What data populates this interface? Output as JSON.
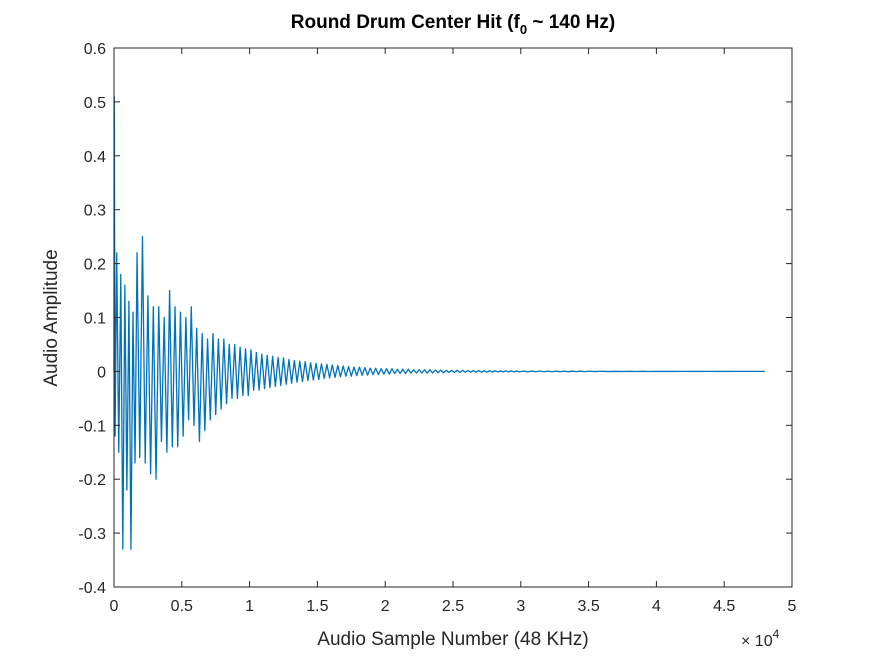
{
  "chart_data": {
    "type": "line",
    "title": {
      "prefix": "Round Drum Center Hit (f",
      "subscript": "0",
      "suffix": " ~ 140 Hz)"
    },
    "xlabel": "Audio Sample Number (48 KHz)",
    "ylabel": "Audio Amplitude",
    "x_exponent": {
      "base": "× 10",
      "power": "4"
    },
    "xlim": [
      0,
      5
    ],
    "ylim": [
      -0.4,
      0.6
    ],
    "x_ticks": [
      0,
      0.5,
      1,
      1.5,
      2,
      2.5,
      3,
      3.5,
      4,
      4.5,
      5
    ],
    "x_tick_labels": [
      "0",
      "0.5",
      "1",
      "1.5",
      "2",
      "2.5",
      "3",
      "3.5",
      "4",
      "4.5",
      "5"
    ],
    "y_ticks": [
      -0.4,
      -0.3,
      -0.2,
      -0.1,
      0,
      0.1,
      0.2,
      0.3,
      0.4,
      0.5,
      0.6
    ],
    "y_tick_labels": [
      "-0.4",
      "-0.3",
      "-0.2",
      "-0.1",
      "0",
      "0.1",
      "0.2",
      "0.3",
      "0.4",
      "0.5",
      "0.6"
    ],
    "grid": false,
    "box": true,
    "series": [
      {
        "color": "#0072BD",
        "x_unit_scale": 10000,
        "points": [
          [
            0,
            0
          ],
          [
            0.002,
            0.51
          ],
          [
            0.008,
            -0.12
          ],
          [
            0.02,
            0.22
          ],
          [
            0.035,
            -0.15
          ],
          [
            0.05,
            0.18
          ],
          [
            0.065,
            -0.33
          ],
          [
            0.08,
            0.16
          ],
          [
            0.095,
            -0.22
          ],
          [
            0.11,
            0.13
          ],
          [
            0.125,
            -0.33
          ],
          [
            0.14,
            0.11
          ],
          [
            0.155,
            -0.17
          ],
          [
            0.17,
            0.22
          ],
          [
            0.19,
            -0.16
          ],
          [
            0.21,
            0.25
          ],
          [
            0.23,
            -0.17
          ],
          [
            0.25,
            0.14
          ],
          [
            0.27,
            -0.19
          ],
          [
            0.29,
            0.12
          ],
          [
            0.31,
            -0.2
          ],
          [
            0.33,
            0.12
          ],
          [
            0.35,
            -0.13
          ],
          [
            0.37,
            0.1
          ],
          [
            0.39,
            -0.15
          ],
          [
            0.41,
            0.15
          ],
          [
            0.43,
            -0.14
          ],
          [
            0.45,
            0.12
          ],
          [
            0.47,
            -0.14
          ],
          [
            0.49,
            0.11
          ],
          [
            0.51,
            -0.12
          ],
          [
            0.53,
            0.1
          ],
          [
            0.55,
            -0.09
          ],
          [
            0.57,
            0.12
          ],
          [
            0.59,
            -0.1
          ],
          [
            0.61,
            0.08
          ],
          [
            0.63,
            -0.13
          ],
          [
            0.65,
            0.07
          ],
          [
            0.67,
            -0.11
          ],
          [
            0.69,
            0.06
          ],
          [
            0.71,
            -0.09
          ],
          [
            0.73,
            0.07
          ],
          [
            0.75,
            -0.08
          ],
          [
            0.77,
            0.06
          ],
          [
            0.79,
            -0.07
          ],
          [
            0.81,
            0.06
          ],
          [
            0.83,
            -0.06
          ],
          [
            0.85,
            0.05
          ],
          [
            0.87,
            -0.05
          ],
          [
            0.89,
            0.05
          ],
          [
            0.91,
            -0.05
          ],
          [
            0.93,
            0.045
          ],
          [
            0.95,
            -0.045
          ],
          [
            0.97,
            0.042
          ],
          [
            0.99,
            -0.045
          ],
          [
            1.01,
            0.04
          ],
          [
            1.03,
            -0.035
          ],
          [
            1.05,
            0.035
          ],
          [
            1.07,
            -0.035
          ],
          [
            1.09,
            0.032
          ],
          [
            1.11,
            -0.032
          ],
          [
            1.13,
            0.03
          ],
          [
            1.15,
            -0.03
          ],
          [
            1.17,
            0.028
          ],
          [
            1.19,
            -0.028
          ],
          [
            1.21,
            0.026
          ],
          [
            1.23,
            -0.026
          ],
          [
            1.25,
            0.025
          ],
          [
            1.27,
            -0.024
          ],
          [
            1.29,
            0.022
          ],
          [
            1.31,
            -0.022
          ],
          [
            1.33,
            0.02
          ],
          [
            1.35,
            -0.02
          ],
          [
            1.37,
            0.019
          ],
          [
            1.39,
            -0.019
          ],
          [
            1.41,
            0.018
          ],
          [
            1.43,
            -0.017
          ],
          [
            1.45,
            0.016
          ],
          [
            1.47,
            -0.016
          ],
          [
            1.49,
            0.015
          ],
          [
            1.51,
            -0.015
          ],
          [
            1.53,
            0.014
          ],
          [
            1.55,
            -0.013
          ],
          [
            1.57,
            0.013
          ],
          [
            1.59,
            -0.012
          ],
          [
            1.61,
            0.012
          ],
          [
            1.63,
            -0.011
          ],
          [
            1.65,
            0.011
          ],
          [
            1.67,
            -0.01
          ],
          [
            1.69,
            0.01
          ],
          [
            1.71,
            -0.009
          ],
          [
            1.73,
            0.009
          ],
          [
            1.75,
            -0.009
          ],
          [
            1.77,
            0.008
          ],
          [
            1.79,
            -0.008
          ],
          [
            1.81,
            0.008
          ],
          [
            1.83,
            -0.007
          ],
          [
            1.85,
            0.007
          ],
          [
            1.87,
            -0.007
          ],
          [
            1.89,
            0.006
          ],
          [
            1.91,
            -0.006
          ],
          [
            1.93,
            0.006
          ],
          [
            1.95,
            -0.006
          ],
          [
            1.97,
            0.005
          ],
          [
            1.99,
            -0.005
          ],
          [
            2.01,
            0.005
          ],
          [
            2.03,
            -0.005
          ],
          [
            2.05,
            0.005
          ],
          [
            2.07,
            -0.004
          ],
          [
            2.09,
            0.004
          ],
          [
            2.11,
            -0.004
          ],
          [
            2.13,
            0.004
          ],
          [
            2.15,
            -0.004
          ],
          [
            2.17,
            0.004
          ],
          [
            2.19,
            -0.003
          ],
          [
            2.21,
            0.003
          ],
          [
            2.23,
            -0.003
          ],
          [
            2.25,
            0.003
          ],
          [
            2.27,
            -0.003
          ],
          [
            2.29,
            0.003
          ],
          [
            2.31,
            -0.003
          ],
          [
            2.33,
            0.003
          ],
          [
            2.35,
            -0.003
          ],
          [
            2.37,
            0.0025
          ],
          [
            2.39,
            -0.0025
          ],
          [
            2.41,
            0.0025
          ],
          [
            2.43,
            -0.0025
          ],
          [
            2.45,
            0.002
          ],
          [
            2.47,
            -0.002
          ],
          [
            2.49,
            0.002
          ],
          [
            2.51,
            -0.002
          ],
          [
            2.53,
            0.002
          ],
          [
            2.55,
            -0.002
          ],
          [
            2.57,
            0.002
          ],
          [
            2.59,
            -0.0015
          ],
          [
            2.61,
            0.0015
          ],
          [
            2.63,
            -0.0015
          ],
          [
            2.65,
            0.0015
          ],
          [
            2.67,
            -0.0015
          ],
          [
            2.69,
            0.0015
          ],
          [
            2.71,
            -0.0015
          ],
          [
            2.73,
            0.0012
          ],
          [
            2.75,
            -0.0012
          ],
          [
            2.77,
            0.0012
          ],
          [
            2.79,
            -0.0012
          ],
          [
            2.81,
            0.0012
          ],
          [
            2.83,
            -0.001
          ],
          [
            2.85,
            0.001
          ],
          [
            2.87,
            -0.001
          ],
          [
            2.89,
            0.001
          ],
          [
            2.91,
            -0.001
          ],
          [
            2.93,
            0.001
          ],
          [
            2.95,
            -0.001
          ],
          [
            2.97,
            0.0008
          ],
          [
            2.99,
            -0.0008
          ],
          [
            3.02,
            0.0008
          ],
          [
            3.05,
            -0.0008
          ],
          [
            3.08,
            0.0007
          ],
          [
            3.11,
            -0.0007
          ],
          [
            3.14,
            0.0007
          ],
          [
            3.17,
            -0.0006
          ],
          [
            3.2,
            0.0006
          ],
          [
            3.23,
            -0.0006
          ],
          [
            3.26,
            0.0005
          ],
          [
            3.29,
            -0.0005
          ],
          [
            3.32,
            0.0005
          ],
          [
            3.35,
            -0.0005
          ],
          [
            3.38,
            0.0004
          ],
          [
            3.41,
            -0.0004
          ],
          [
            3.44,
            0.0004
          ],
          [
            3.47,
            -0.0004
          ],
          [
            3.5,
            0.0003
          ],
          [
            3.55,
            -0.0003
          ],
          [
            3.6,
            0.0003
          ],
          [
            3.65,
            -0.0003
          ],
          [
            3.7,
            0.0002
          ],
          [
            3.75,
            -0.0002
          ],
          [
            3.8,
            0.0002
          ],
          [
            3.85,
            -0.0002
          ],
          [
            3.9,
            0.0002
          ],
          [
            3.95,
            -0.0002
          ],
          [
            4.0,
            0.0001
          ],
          [
            4.1,
            -0.0001
          ],
          [
            4.2,
            0.0001
          ],
          [
            4.3,
            -0.0001
          ],
          [
            4.4,
            0.0001
          ],
          [
            4.5,
            -0.0001
          ],
          [
            4.6,
            0.0001
          ],
          [
            4.7,
            0
          ],
          [
            4.8,
            0
          ]
        ]
      }
    ]
  }
}
